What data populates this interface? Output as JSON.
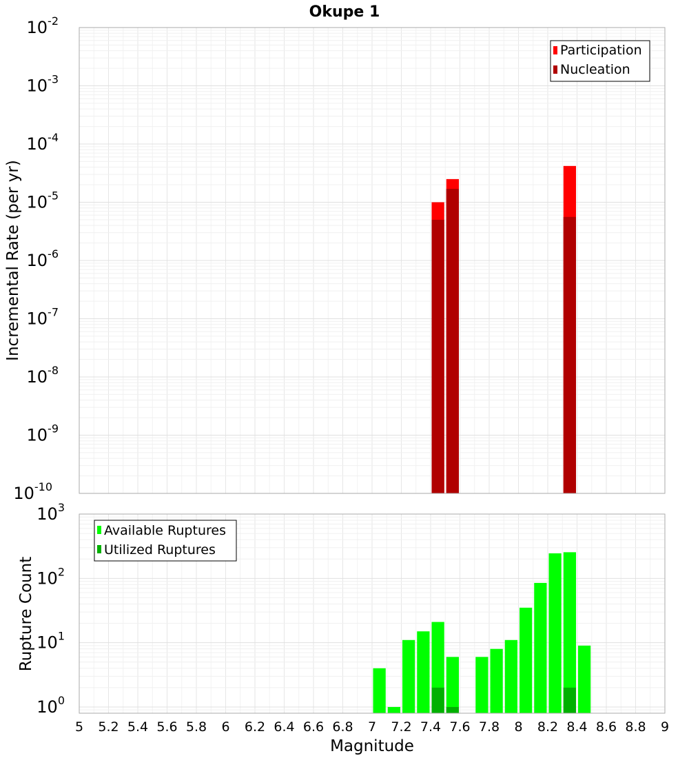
{
  "title": "Okupe 1",
  "chart_data": [
    {
      "type": "bar",
      "title": "Okupe 1",
      "ylabel": "Incremental Rate (per yr)",
      "xlabel": "",
      "yscale": "log",
      "ylim": [
        1e-10,
        0.01
      ],
      "xlim": [
        5,
        9
      ],
      "bar_width": 0.1,
      "grid": true,
      "legend_position": "top-right",
      "y_ticks": [
        {
          "base": "10",
          "exp": "-10",
          "value": 1e-10
        },
        {
          "base": "10",
          "exp": "-9",
          "value": 1e-09
        },
        {
          "base": "10",
          "exp": "-8",
          "value": 1e-08
        },
        {
          "base": "10",
          "exp": "-7",
          "value": 1e-07
        },
        {
          "base": "10",
          "exp": "-6",
          "value": 1e-06
        },
        {
          "base": "10",
          "exp": "-5",
          "value": 1e-05
        },
        {
          "base": "10",
          "exp": "-4",
          "value": 0.0001
        },
        {
          "base": "10",
          "exp": "-3",
          "value": 0.001
        },
        {
          "base": "10",
          "exp": "-2",
          "value": 0.01
        }
      ],
      "series": [
        {
          "name": "Participation",
          "color": "#ff0000",
          "points": [
            {
              "x": 7.45,
              "y": 1e-05
            },
            {
              "x": 7.55,
              "y": 2.5e-05
            },
            {
              "x": 8.35,
              "y": 4.2e-05
            }
          ]
        },
        {
          "name": "Nucleation",
          "color": "#b00000",
          "points": [
            {
              "x": 7.45,
              "y": 5e-06
            },
            {
              "x": 7.55,
              "y": 1.7e-05
            },
            {
              "x": 8.35,
              "y": 5.6e-06
            }
          ]
        }
      ]
    },
    {
      "type": "bar",
      "title": "",
      "ylabel": "Rupture Count",
      "xlabel": "Magnitude",
      "yscale": "log",
      "ylim": [
        0.8,
        1000
      ],
      "xlim": [
        5,
        9
      ],
      "bar_width": 0.1,
      "grid": true,
      "legend_position": "top-left",
      "y_ticks": [
        {
          "base": "10",
          "exp": "0",
          "value": 1
        },
        {
          "base": "10",
          "exp": "1",
          "value": 10
        },
        {
          "base": "10",
          "exp": "2",
          "value": 100
        },
        {
          "base": "10",
          "exp": "3",
          "value": 1000
        }
      ],
      "x_ticks": [
        "5",
        "5.2",
        "5.4",
        "5.6",
        "5.8",
        "6",
        "6.2",
        "6.4",
        "6.6",
        "6.8",
        "7",
        "7.2",
        "7.4",
        "7.6",
        "7.8",
        "8",
        "8.2",
        "8.4",
        "8.6",
        "8.8",
        "9"
      ],
      "series": [
        {
          "name": "Available Ruptures",
          "color": "#00ff00",
          "points": [
            {
              "x": 7.05,
              "y": 4
            },
            {
              "x": 7.15,
              "y": 1
            },
            {
              "x": 7.25,
              "y": 11
            },
            {
              "x": 7.35,
              "y": 15
            },
            {
              "x": 7.45,
              "y": 21
            },
            {
              "x": 7.55,
              "y": 6
            },
            {
              "x": 7.75,
              "y": 6
            },
            {
              "x": 7.85,
              "y": 8
            },
            {
              "x": 7.95,
              "y": 11
            },
            {
              "x": 8.05,
              "y": 35
            },
            {
              "x": 8.15,
              "y": 85
            },
            {
              "x": 8.25,
              "y": 245
            },
            {
              "x": 8.35,
              "y": 255
            },
            {
              "x": 8.45,
              "y": 9
            }
          ]
        },
        {
          "name": "Utilized Ruptures",
          "color": "#00b000",
          "points": [
            {
              "x": 7.45,
              "y": 2
            },
            {
              "x": 7.55,
              "y": 1
            },
            {
              "x": 8.35,
              "y": 2
            }
          ]
        }
      ]
    }
  ]
}
